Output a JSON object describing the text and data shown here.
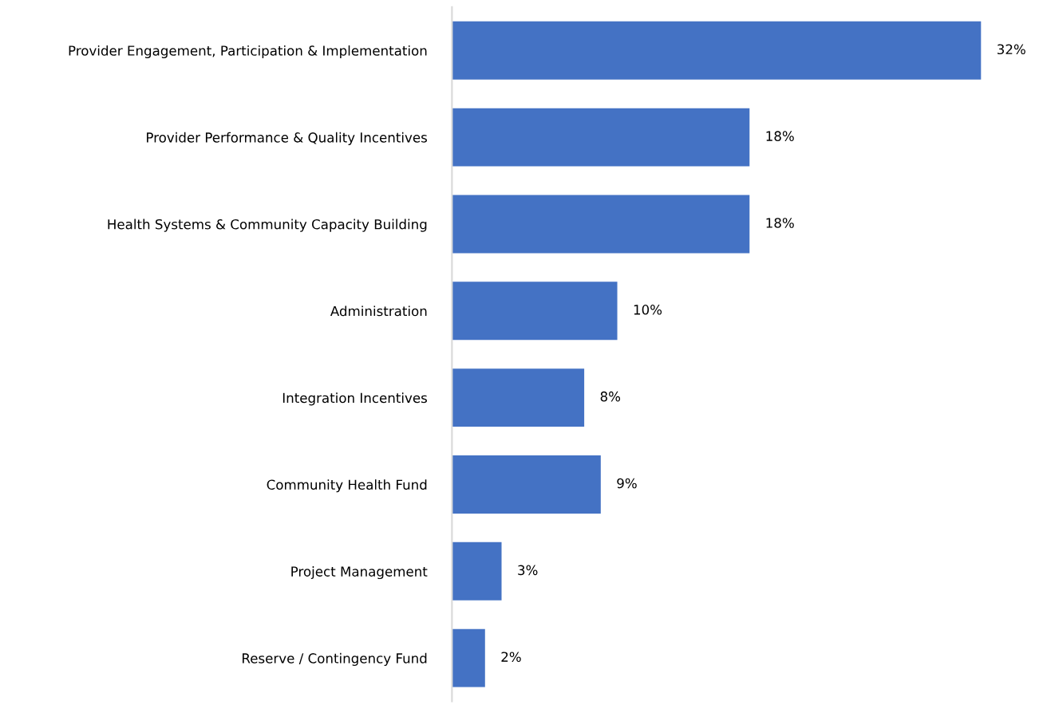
{
  "chart_data": {
    "type": "bar",
    "orientation": "horizontal",
    "categories": [
      "Provider Engagement, Participation & Implementation",
      "Provider Performance & Quality Incentives",
      "Health Systems & Community Capacity Building",
      "Administration",
      "Integration Incentives",
      "Community Health Fund",
      "Project Management",
      "Reserve / Contingency Fund"
    ],
    "values": [
      32,
      18,
      18,
      10,
      8,
      9,
      3,
      2
    ],
    "value_labels": [
      "32%",
      "18%",
      "18%",
      "10%",
      "8%",
      "9%",
      "3%",
      "2%"
    ],
    "color": "#4472c4",
    "grid": false,
    "legend": false
  }
}
